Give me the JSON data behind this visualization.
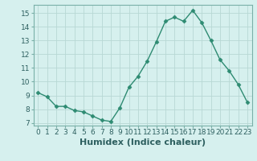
{
  "x": [
    0,
    1,
    2,
    3,
    4,
    5,
    6,
    7,
    8,
    9,
    10,
    11,
    12,
    13,
    14,
    15,
    16,
    17,
    18,
    19,
    20,
    21,
    22,
    23
  ],
  "y": [
    9.2,
    8.9,
    8.2,
    8.2,
    7.9,
    7.8,
    7.5,
    7.2,
    7.1,
    8.1,
    9.6,
    10.4,
    11.5,
    12.9,
    14.4,
    14.7,
    14.4,
    15.2,
    14.3,
    13.0,
    11.6,
    10.8,
    9.8,
    8.5
  ],
  "line_color": "#2e8b72",
  "marker": "D",
  "marker_size": 2.5,
  "bg_color": "#d6f0ee",
  "grid_color": "#b8d8d4",
  "xlabel": "Humidex (Indice chaleur)",
  "xlim": [
    -0.5,
    23.5
  ],
  "ylim": [
    6.8,
    15.6
  ],
  "yticks": [
    7,
    8,
    9,
    10,
    11,
    12,
    13,
    14,
    15
  ],
  "xticks": [
    0,
    1,
    2,
    3,
    4,
    5,
    6,
    7,
    8,
    9,
    10,
    11,
    12,
    13,
    14,
    15,
    16,
    17,
    18,
    19,
    20,
    21,
    22,
    23
  ],
  "tick_label_fontsize": 6.5,
  "xlabel_fontsize": 8,
  "line_width": 1.0
}
